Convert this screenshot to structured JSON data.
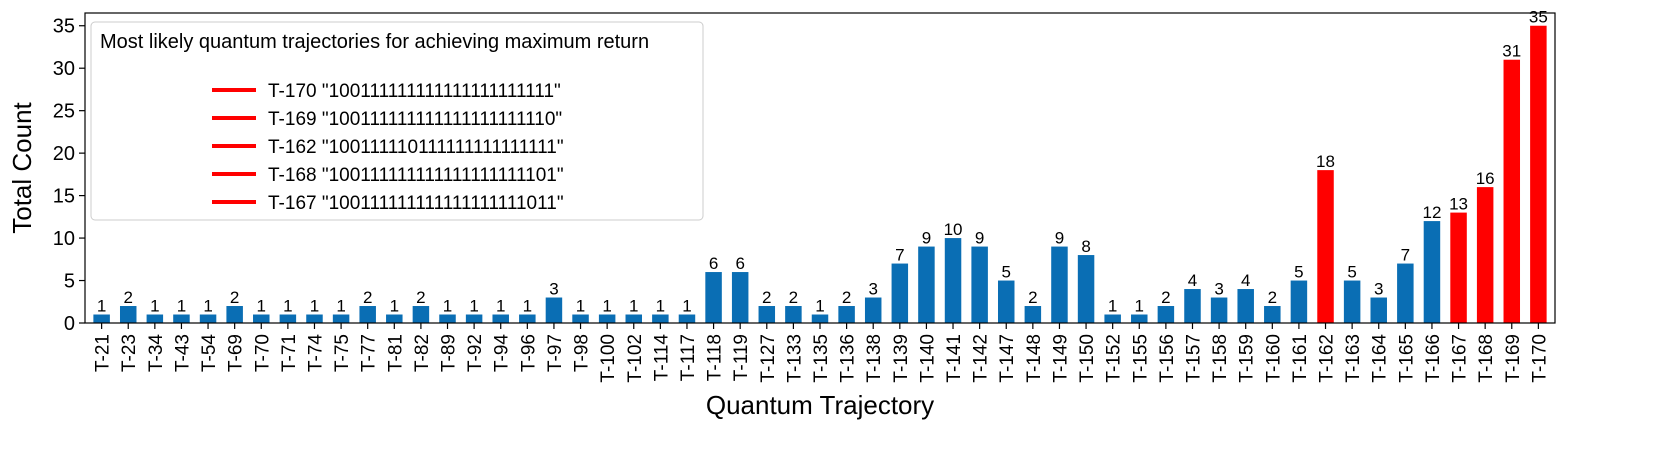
{
  "chart_data": {
    "type": "bar",
    "xlabel": "Quantum Trajectory",
    "ylabel": "Total Count",
    "ylim": [
      0,
      36.5
    ],
    "yticks": [
      0,
      5,
      10,
      15,
      20,
      25,
      30,
      35
    ],
    "grid": false,
    "colors": {
      "default": "#0a6eb4",
      "highlight": "#ff0000"
    },
    "categories": [
      "T-21",
      "T-23",
      "T-34",
      "T-43",
      "T-54",
      "T-69",
      "T-70",
      "T-71",
      "T-74",
      "T-75",
      "T-77",
      "T-81",
      "T-82",
      "T-89",
      "T-92",
      "T-94",
      "T-96",
      "T-97",
      "T-98",
      "T-100",
      "T-102",
      "T-114",
      "T-117",
      "T-118",
      "T-119",
      "T-127",
      "T-133",
      "T-135",
      "T-136",
      "T-138",
      "T-139",
      "T-140",
      "T-141",
      "T-142",
      "T-147",
      "T-148",
      "T-149",
      "T-150",
      "T-152",
      "T-155",
      "T-156",
      "T-157",
      "T-158",
      "T-159",
      "T-160",
      "T-161",
      "T-162",
      "T-163",
      "T-164",
      "T-165",
      "T-166",
      "T-167",
      "T-168",
      "T-169",
      "T-170"
    ],
    "values": [
      1,
      2,
      1,
      1,
      1,
      2,
      1,
      1,
      1,
      1,
      2,
      1,
      2,
      1,
      1,
      1,
      1,
      3,
      1,
      1,
      1,
      1,
      1,
      6,
      6,
      2,
      2,
      1,
      2,
      3,
      7,
      9,
      10,
      9,
      5,
      2,
      9,
      8,
      1,
      1,
      2,
      4,
      3,
      4,
      2,
      5,
      18,
      5,
      3,
      7,
      12,
      13,
      16,
      31,
      35
    ],
    "highlighted": [
      "T-162",
      "T-167",
      "T-168",
      "T-169",
      "T-170"
    ],
    "legend": {
      "placement": "upper-left",
      "title": "Most likely quantum trajectories for achieving maximum return",
      "entries": [
        "T-170 \"100111111111111111111111\"",
        "T-169 \"100111111111111111111110\"",
        "T-162 \"100111110111111111111111\"",
        "T-168 \"100111111111111111111101\"",
        "T-167 \"100111111111111111111011\""
      ]
    }
  }
}
